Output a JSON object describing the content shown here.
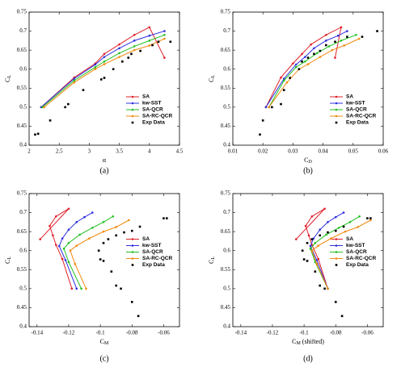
{
  "chart_data": [
    {
      "type": "line",
      "caption": "(a)",
      "xlabel": "α",
      "ylabel": "C",
      "ylabel_sub": "L",
      "legend": "lower right",
      "xlim": [
        2,
        4.5
      ],
      "ylim": [
        0.4,
        0.75
      ],
      "xticks": [
        2,
        2.5,
        3,
        3.5,
        4,
        4.5
      ],
      "yticks": [
        0.4,
        0.45,
        0.5,
        0.55,
        0.6,
        0.65,
        0.7,
        0.75
      ],
      "series": [
        {
          "name": "SA",
          "color": "#e0202a",
          "x": [
            2.2,
            2.75,
            3.1,
            3.25,
            3.5,
            3.75,
            4.0,
            4.25
          ],
          "values": [
            0.5,
            0.578,
            0.615,
            0.64,
            0.665,
            0.69,
            0.71,
            0.63
          ]
        },
        {
          "name": "kw-SST",
          "color": "#2f2fe0",
          "x": [
            2.2,
            2.75,
            3.1,
            3.25,
            3.5,
            3.75,
            4.0,
            4.25
          ],
          "values": [
            0.5,
            0.575,
            0.612,
            0.632,
            0.655,
            0.675,
            0.688,
            0.7
          ]
        },
        {
          "name": "SA-QCR",
          "color": "#22c022",
          "x": [
            2.22,
            2.75,
            3.1,
            3.25,
            3.5,
            3.75,
            4.0,
            4.25
          ],
          "values": [
            0.5,
            0.57,
            0.605,
            0.62,
            0.642,
            0.66,
            0.675,
            0.69
          ]
        },
        {
          "name": "SA-RC-QCR",
          "color": "#f08a10",
          "x": [
            2.25,
            2.75,
            3.1,
            3.25,
            3.5,
            3.75,
            4.0,
            4.25
          ],
          "values": [
            0.5,
            0.565,
            0.6,
            0.613,
            0.632,
            0.65,
            0.662,
            0.68
          ]
        },
        {
          "name": "Exp Data",
          "color": "#000000",
          "line": false,
          "x": [
            2.1,
            2.15,
            2.35,
            2.6,
            2.65,
            2.9,
            3.2,
            3.25,
            3.4,
            3.55,
            3.65,
            3.7,
            3.85,
            4.05,
            4.15,
            4.35
          ],
          "values": [
            0.428,
            0.43,
            0.465,
            0.5,
            0.508,
            0.545,
            0.573,
            0.577,
            0.6,
            0.62,
            0.63,
            0.64,
            0.648,
            0.663,
            0.672,
            0.672
          ]
        }
      ]
    },
    {
      "type": "line",
      "caption": "(b)",
      "xlabel": "C",
      "xlabel_sub": "D",
      "ylabel": "C",
      "ylabel_sub": "L",
      "legend": "lower right",
      "xlim": [
        0.01,
        0.06
      ],
      "ylim": [
        0.4,
        0.75
      ],
      "xticks": [
        0.01,
        0.02,
        0.03,
        0.04,
        0.05,
        0.06
      ],
      "yticks": [
        0.4,
        0.45,
        0.5,
        0.55,
        0.6,
        0.65,
        0.7,
        0.75
      ],
      "series": [
        {
          "name": "SA",
          "color": "#e0202a",
          "x": [
            0.021,
            0.026,
            0.03,
            0.033,
            0.036,
            0.041,
            0.046,
            0.044
          ],
          "values": [
            0.5,
            0.578,
            0.615,
            0.64,
            0.665,
            0.69,
            0.71,
            0.63
          ]
        },
        {
          "name": "kw-SST",
          "color": "#2f2fe0",
          "x": [
            0.021,
            0.027,
            0.031,
            0.034,
            0.037,
            0.041,
            0.045,
            0.048
          ],
          "values": [
            0.5,
            0.575,
            0.612,
            0.632,
            0.655,
            0.675,
            0.688,
            0.7
          ]
        },
        {
          "name": "SA-QCR",
          "color": "#22c022",
          "x": [
            0.022,
            0.027,
            0.031,
            0.034,
            0.038,
            0.042,
            0.046,
            0.051
          ],
          "values": [
            0.5,
            0.57,
            0.605,
            0.62,
            0.642,
            0.66,
            0.675,
            0.69
          ]
        },
        {
          "name": "SA-RC-QCR",
          "color": "#f08a10",
          "x": [
            0.022,
            0.028,
            0.032,
            0.035,
            0.039,
            0.043,
            0.047,
            0.052
          ],
          "values": [
            0.5,
            0.565,
            0.6,
            0.613,
            0.632,
            0.65,
            0.662,
            0.68
          ]
        },
        {
          "name": "Exp Data",
          "color": "#000000",
          "line": false,
          "x": [
            0.019,
            0.02,
            0.023,
            0.026,
            0.027,
            0.029,
            0.032,
            0.033,
            0.035,
            0.037,
            0.039,
            0.041,
            0.044,
            0.048,
            0.053,
            0.058
          ],
          "values": [
            0.428,
            0.465,
            0.5,
            0.508,
            0.545,
            0.577,
            0.6,
            0.62,
            0.63,
            0.64,
            0.648,
            0.663,
            0.672,
            0.685,
            0.685,
            0.7
          ]
        }
      ]
    },
    {
      "type": "line",
      "caption": "(c)",
      "xlabel": "C",
      "xlabel_sub": "M",
      "ylabel": "C",
      "ylabel_sub": "L",
      "legend": "center right",
      "xlim": [
        -0.145,
        -0.05
      ],
      "ylim": [
        0.4,
        0.75
      ],
      "xticks": [
        -0.14,
        -0.12,
        -0.1,
        -0.08,
        -0.06
      ],
      "yticks": [
        0.4,
        0.45,
        0.5,
        0.55,
        0.6,
        0.65,
        0.7,
        0.75
      ],
      "series": [
        {
          "name": "SA",
          "color": "#e0202a",
          "x": [
            -0.118,
            -0.124,
            -0.128,
            -0.13,
            -0.132,
            -0.128,
            -0.12,
            -0.138
          ],
          "values": [
            0.5,
            0.578,
            0.615,
            0.64,
            0.665,
            0.69,
            0.71,
            0.63
          ]
        },
        {
          "name": "kw-SST",
          "color": "#2f2fe0",
          "x": [
            -0.115,
            -0.122,
            -0.126,
            -0.124,
            -0.12,
            -0.115,
            -0.11,
            -0.105
          ],
          "values": [
            0.5,
            0.575,
            0.612,
            0.632,
            0.655,
            0.675,
            0.688,
            0.7
          ]
        },
        {
          "name": "SA-QCR",
          "color": "#22c022",
          "x": [
            -0.112,
            -0.12,
            -0.123,
            -0.12,
            -0.113,
            -0.105,
            -0.098,
            -0.092
          ],
          "values": [
            0.5,
            0.57,
            0.605,
            0.62,
            0.642,
            0.66,
            0.675,
            0.69
          ]
        },
        {
          "name": "SA-RC-QCR",
          "color": "#f08a10",
          "x": [
            -0.109,
            -0.116,
            -0.119,
            -0.115,
            -0.107,
            -0.098,
            -0.09,
            -0.082
          ],
          "values": [
            0.5,
            0.565,
            0.6,
            0.613,
            0.632,
            0.65,
            0.662,
            0.68
          ]
        },
        {
          "name": "Exp Data",
          "color": "#000000",
          "line": false,
          "x": [
            -0.076,
            -0.08,
            -0.087,
            -0.09,
            -0.093,
            -0.098,
            -0.1,
            -0.101,
            -0.098,
            -0.095,
            -0.09,
            -0.085,
            -0.08,
            -0.075,
            -0.06,
            -0.058
          ],
          "values": [
            0.428,
            0.465,
            0.5,
            0.508,
            0.545,
            0.573,
            0.577,
            0.6,
            0.62,
            0.63,
            0.64,
            0.648,
            0.652,
            0.663,
            0.685,
            0.685
          ]
        }
      ]
    },
    {
      "type": "line",
      "caption": "(d)",
      "xlabel": "C",
      "xlabel_sub": "M",
      "xlabel_suffix": " (shifted)",
      "ylabel": "C",
      "ylabel_sub": "L",
      "legend": "center right",
      "xlim": [
        -0.145,
        -0.05
      ],
      "ylim": [
        0.4,
        0.75
      ],
      "xticks": [
        -0.14,
        -0.12,
        -0.1,
        -0.08,
        -0.06
      ],
      "yticks": [
        0.4,
        0.45,
        0.5,
        0.55,
        0.6,
        0.65,
        0.7,
        0.75
      ],
      "series": [
        {
          "name": "SA",
          "color": "#e0202a",
          "x": [
            -0.085,
            -0.091,
            -0.095,
            -0.097,
            -0.099,
            -0.095,
            -0.087,
            -0.105
          ],
          "values": [
            0.5,
            0.578,
            0.615,
            0.64,
            0.665,
            0.69,
            0.71,
            0.63
          ]
        },
        {
          "name": "kw-SST",
          "color": "#2f2fe0",
          "x": [
            -0.085,
            -0.092,
            -0.096,
            -0.094,
            -0.09,
            -0.085,
            -0.08,
            -0.075
          ],
          "values": [
            0.5,
            0.575,
            0.612,
            0.632,
            0.655,
            0.675,
            0.688,
            0.7
          ]
        },
        {
          "name": "SA-QCR",
          "color": "#22c022",
          "x": [
            -0.085,
            -0.093,
            -0.096,
            -0.093,
            -0.086,
            -0.078,
            -0.071,
            -0.065
          ],
          "values": [
            0.5,
            0.57,
            0.605,
            0.62,
            0.642,
            0.66,
            0.675,
            0.69
          ]
        },
        {
          "name": "SA-RC-QCR",
          "color": "#f08a10",
          "x": [
            -0.085,
            -0.092,
            -0.095,
            -0.091,
            -0.083,
            -0.074,
            -0.066,
            -0.058
          ],
          "values": [
            0.5,
            0.565,
            0.6,
            0.613,
            0.632,
            0.65,
            0.662,
            0.68
          ]
        },
        {
          "name": "Exp Data",
          "color": "#000000",
          "line": false,
          "x": [
            -0.076,
            -0.08,
            -0.087,
            -0.09,
            -0.093,
            -0.098,
            -0.1,
            -0.101,
            -0.098,
            -0.095,
            -0.09,
            -0.085,
            -0.08,
            -0.075,
            -0.06,
            -0.058
          ],
          "values": [
            0.428,
            0.465,
            0.5,
            0.508,
            0.545,
            0.573,
            0.577,
            0.6,
            0.62,
            0.63,
            0.64,
            0.648,
            0.652,
            0.663,
            0.685,
            0.685
          ]
        }
      ]
    }
  ]
}
